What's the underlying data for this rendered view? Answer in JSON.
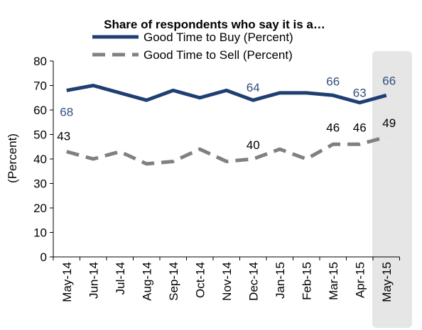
{
  "chart_data": {
    "type": "line",
    "title": "Share of respondents who say it is a…",
    "ylabel": "(Percent)",
    "xlabel": "",
    "ylim": [
      0,
      80
    ],
    "yticks": [
      0,
      10,
      20,
      30,
      40,
      50,
      60,
      70,
      80
    ],
    "categories": [
      "May-14",
      "Jun-14",
      "Jul-14",
      "Aug-14",
      "Sep-14",
      "Oct-14",
      "Nov-14",
      "Dec-14",
      "Jan-15",
      "Feb-15",
      "Mar-15",
      "Apr-15",
      "May-15"
    ],
    "legend_position": "top",
    "highlight_category": "May-15",
    "series": [
      {
        "name": "Good Time to Buy (Percent)",
        "color": "#1f3f73",
        "style": "solid",
        "values": [
          68,
          70,
          67,
          64,
          68,
          65,
          68,
          64,
          67,
          67,
          66,
          63,
          66
        ],
        "labeled_points": [
          {
            "index": 0,
            "label": "68"
          },
          {
            "index": 7,
            "label": "64"
          },
          {
            "index": 10,
            "label": "66"
          },
          {
            "index": 11,
            "label": "63"
          },
          {
            "index": 12,
            "label": "66"
          }
        ]
      },
      {
        "name": "Good Time to Sell (Percent)",
        "color": "#808080",
        "style": "dashed",
        "values": [
          43,
          40,
          43,
          38,
          39,
          44,
          39,
          40,
          44,
          40,
          46,
          46,
          49
        ],
        "labeled_points": [
          {
            "index": 0,
            "label": "43"
          },
          {
            "index": 7,
            "label": "40"
          },
          {
            "index": 10,
            "label": "46"
          },
          {
            "index": 11,
            "label": "46"
          },
          {
            "index": 12,
            "label": "49"
          }
        ]
      }
    ]
  }
}
